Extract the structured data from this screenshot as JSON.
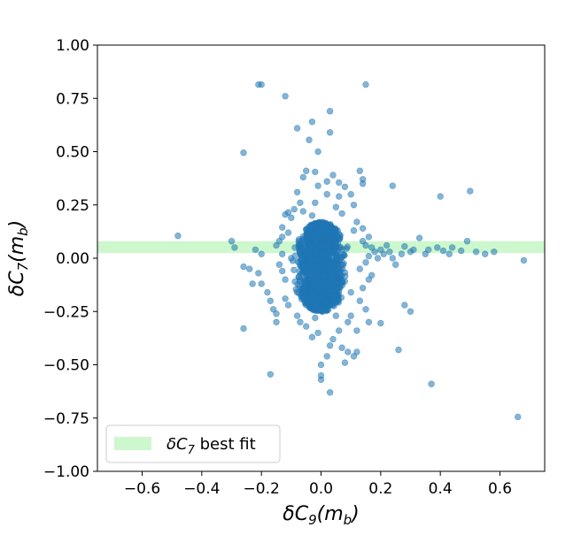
{
  "chart_data": {
    "type": "scatter",
    "xlabel": {
      "prefix": "δC",
      "sub": "9",
      "suffix": "(m",
      "sub2": "b",
      "end": ")"
    },
    "ylabel": {
      "prefix": "δC",
      "sub": "7",
      "suffix": "(m",
      "sub2": "b",
      "end": ")"
    },
    "xlim": [
      -0.75,
      0.75
    ],
    "ylim": [
      -1.0,
      1.0
    ],
    "xticks": [
      -0.6,
      -0.4,
      -0.2,
      0.0,
      0.2,
      0.4,
      0.6
    ],
    "xtick_labels": [
      "−0.6",
      "−0.4",
      "−0.2",
      "0.0",
      "0.2",
      "0.4",
      "0.6"
    ],
    "yticks": [
      -1.0,
      -0.75,
      -0.5,
      -0.25,
      0.0,
      0.25,
      0.5,
      0.75,
      1.0
    ],
    "ytick_labels": [
      "−1.00",
      "−0.75",
      "−0.50",
      "−0.25",
      "0.00",
      "0.25",
      "0.50",
      "0.75",
      "1.00"
    ],
    "grid": false,
    "legend_position": "lower-left",
    "band": {
      "label": {
        "prefix": "δC",
        "sub": "7",
        "suffix": " best fit"
      },
      "y_range": [
        0.025,
        0.08
      ],
      "color": "#90ee90",
      "opacity": 0.45
    },
    "series": [
      {
        "color": "#1f77b4",
        "opacity": 0.55,
        "core": {
          "x_center": 0.0,
          "x_half_width": 0.1,
          "y_range": [
            -0.25,
            0.17
          ]
        },
        "points": [
          [
            -0.2,
            0.815
          ],
          [
            -0.21,
            0.815
          ],
          [
            0.15,
            0.815
          ],
          [
            -0.12,
            0.76
          ],
          [
            0.03,
            0.69
          ],
          [
            -0.03,
            0.64
          ],
          [
            -0.08,
            0.61
          ],
          [
            0.03,
            0.59
          ],
          [
            -0.04,
            0.555
          ],
          [
            -0.26,
            0.495
          ],
          [
            -0.01,
            0.5
          ],
          [
            0.5,
            0.315
          ],
          [
            0.4,
            0.29
          ],
          [
            0.24,
            0.34
          ],
          [
            0.13,
            0.41
          ],
          [
            0.14,
            0.37
          ],
          [
            0.14,
            0.35
          ],
          [
            -0.05,
            0.41
          ],
          [
            -0.02,
            0.405
          ],
          [
            0.04,
            0.39
          ],
          [
            -0.06,
            0.38
          ],
          [
            0.02,
            0.36
          ],
          [
            0.06,
            0.355
          ],
          [
            -0.01,
            0.34
          ],
          [
            0.08,
            0.335
          ],
          [
            -0.08,
            0.31
          ],
          [
            0.1,
            0.3
          ],
          [
            0.06,
            0.29
          ],
          [
            -0.07,
            0.26
          ],
          [
            0.11,
            0.25
          ],
          [
            -0.11,
            0.215
          ],
          [
            -0.12,
            0.205
          ],
          [
            -0.1,
            0.19
          ],
          [
            0.12,
            0.17
          ],
          [
            -0.13,
            0.145
          ],
          [
            0.14,
            0.14
          ],
          [
            -0.48,
            0.105
          ],
          [
            -0.3,
            0.08
          ],
          [
            -0.29,
            0.05
          ],
          [
            -0.22,
            0.04
          ],
          [
            -0.2,
            0.02
          ],
          [
            -0.26,
            -0.04
          ],
          [
            -0.24,
            -0.05
          ],
          [
            -0.23,
            -0.12
          ],
          [
            -0.21,
            -0.07
          ],
          [
            -0.2,
            -0.12
          ],
          [
            -0.18,
            -0.16
          ],
          [
            -0.17,
            -0.2
          ],
          [
            -0.16,
            -0.24
          ],
          [
            -0.15,
            -0.26
          ],
          [
            -0.26,
            -0.33
          ],
          [
            -0.15,
            -0.3
          ],
          [
            -0.12,
            -0.19
          ],
          [
            -0.11,
            -0.22
          ],
          [
            0.13,
            -0.2
          ],
          [
            0.15,
            -0.24
          ],
          [
            0.16,
            -0.3
          ],
          [
            0.12,
            -0.34
          ],
          [
            -0.03,
            -0.37
          ],
          [
            -0.01,
            -0.35
          ],
          [
            0.04,
            -0.38
          ],
          [
            0.03,
            -0.41
          ],
          [
            0.07,
            -0.42
          ],
          [
            0.02,
            -0.46
          ],
          [
            0.09,
            -0.44
          ],
          [
            0.12,
            -0.44
          ],
          [
            0.11,
            -0.46
          ],
          [
            0.08,
            -0.49
          ],
          [
            0.0,
            -0.5
          ],
          [
            0.0,
            -0.55
          ],
          [
            0.0,
            -0.57
          ],
          [
            0.03,
            -0.63
          ],
          [
            -0.17,
            -0.545
          ],
          [
            0.26,
            -0.43
          ],
          [
            0.2,
            -0.305
          ],
          [
            0.37,
            -0.59
          ],
          [
            0.66,
            -0.745
          ],
          [
            0.68,
            -0.01
          ],
          [
            0.58,
            0.03
          ],
          [
            0.55,
            0.02
          ],
          [
            0.52,
            0.03
          ],
          [
            0.49,
            0.08
          ],
          [
            0.47,
            0.035
          ],
          [
            0.44,
            0.05
          ],
          [
            0.43,
            0.02
          ],
          [
            0.41,
            0.035
          ],
          [
            0.39,
            0.05
          ],
          [
            0.36,
            0.04
          ],
          [
            0.35,
            0.02
          ],
          [
            0.33,
            0.095
          ],
          [
            0.31,
            0.04
          ],
          [
            0.3,
            0.03
          ],
          [
            0.28,
            0.055
          ],
          [
            0.27,
            0.02
          ],
          [
            0.25,
            -0.03
          ],
          [
            0.24,
            0.0
          ],
          [
            0.23,
            0.03
          ],
          [
            0.22,
            0.06
          ],
          [
            0.21,
            0.02
          ],
          [
            0.2,
            0.04
          ],
          [
            0.19,
            0.0
          ],
          [
            0.18,
            0.03
          ],
          [
            0.17,
            0.05
          ],
          [
            0.16,
            0.01
          ],
          [
            0.15,
            0.06
          ],
          [
            0.16,
            0.1
          ],
          [
            0.14,
            0.08
          ],
          [
            0.13,
            -0.05
          ],
          [
            0.16,
            -0.1
          ],
          [
            0.14,
            -0.14
          ],
          [
            0.17,
            -0.08
          ],
          [
            0.15,
            -0.02
          ],
          [
            -0.13,
            0.02
          ],
          [
            -0.14,
            -0.03
          ],
          [
            -0.13,
            -0.06
          ],
          [
            -0.14,
            0.08
          ],
          [
            -0.15,
            0.06
          ],
          [
            -0.13,
            0.1
          ],
          [
            -0.12,
            -0.1
          ],
          [
            -0.1,
            0.0
          ],
          [
            -0.11,
            0.12
          ],
          [
            0.1,
            -0.16
          ],
          [
            0.11,
            0.13
          ],
          [
            0.28,
            -0.22
          ],
          [
            0.3,
            -0.25
          ],
          [
            -0.09,
            0.23
          ],
          [
            0.05,
            0.24
          ],
          [
            -0.02,
            0.26
          ],
          [
            0.07,
            0.21
          ],
          [
            -0.06,
            0.22
          ],
          [
            0.02,
            0.3
          ],
          [
            -0.03,
            0.2
          ],
          [
            0.09,
            -0.3
          ],
          [
            -0.07,
            -0.3
          ],
          [
            -0.05,
            -0.32
          ],
          [
            0.06,
            -0.34
          ],
          [
            -0.02,
            -0.28
          ],
          [
            0.05,
            -0.27
          ],
          [
            0.1,
            -0.27
          ],
          [
            -0.08,
            -0.27
          ]
        ]
      }
    ]
  }
}
